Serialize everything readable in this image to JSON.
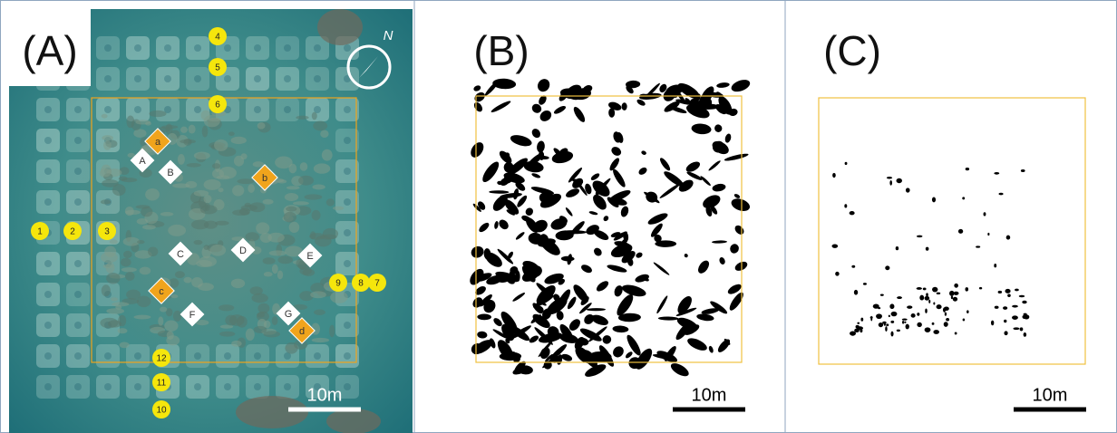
{
  "panels": [
    {
      "label": "(A)",
      "scale_bar": "10m",
      "compass": "N",
      "points": [
        "1",
        "2",
        "3",
        "4",
        "5",
        "6",
        "7",
        "8",
        "9",
        "10",
        "11",
        "12"
      ],
      "sites_upper": [
        "A",
        "B",
        "C",
        "D",
        "E",
        "F",
        "G"
      ],
      "sites_lower": [
        "a",
        "b",
        "c",
        "d"
      ]
    },
    {
      "label": "(B)",
      "scale_bar": "10m"
    },
    {
      "label": "(C)",
      "scale_bar": "10m"
    }
  ]
}
